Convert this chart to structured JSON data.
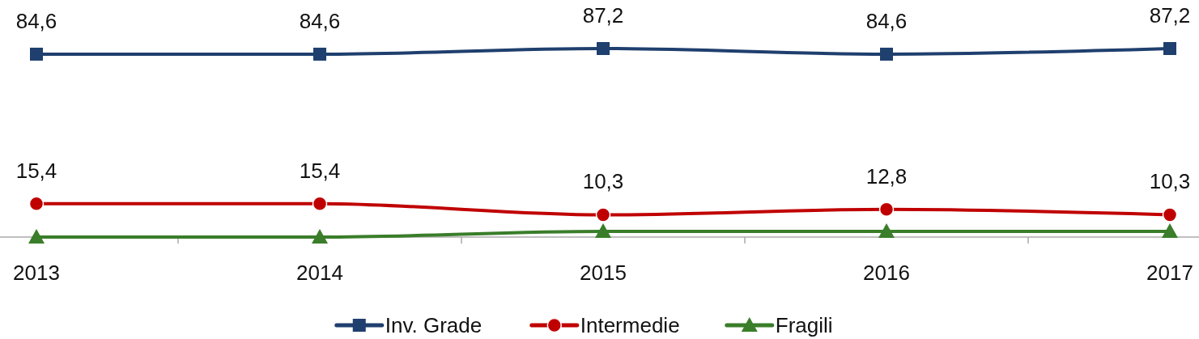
{
  "chart_data": {
    "type": "line",
    "categories": [
      "2013",
      "2014",
      "2015",
      "2016",
      "2017"
    ],
    "tick_labels": "x",
    "legend": "bottom",
    "line_style": "solid",
    "series": [
      {
        "name": "Inv. Grade",
        "color": "#1f3f6e",
        "marker": "square",
        "values": [
          84.6,
          84.6,
          87.2,
          84.6,
          87.2
        ],
        "value_labels": [
          "84,6",
          "84,6",
          "87,2",
          "84,6",
          "87,2"
        ]
      },
      {
        "name": "Intermedie",
        "color": "#c00000",
        "marker": "circle",
        "values": [
          15.4,
          15.4,
          10.3,
          12.8,
          10.3
        ],
        "value_labels": [
          "15,4",
          "15,4",
          "10,3",
          "12,8",
          "10,3"
        ]
      },
      {
        "name": "Fragili",
        "color": "#3a7d2a",
        "marker": "triangle",
        "values": [
          0,
          0,
          2.6,
          2.6,
          2.6
        ]
      }
    ]
  }
}
